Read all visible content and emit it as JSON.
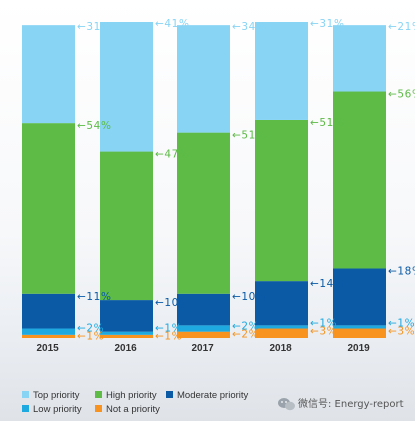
{
  "chart_data": {
    "type": "bar",
    "stacked": true,
    "percent": true,
    "categories": [
      "2015",
      "2016",
      "2017",
      "2018",
      "2019"
    ],
    "series": [
      {
        "name": "Not a priority",
        "color": "#f7931e",
        "values": [
          1,
          1,
          2,
          3,
          3
        ]
      },
      {
        "name": "Low priority",
        "color": "#1ea9e1",
        "values": [
          2,
          1,
          2,
          1,
          1
        ]
      },
      {
        "name": "Moderate priority",
        "color": "#0b5aa6",
        "values": [
          11,
          10,
          10,
          14,
          18
        ]
      },
      {
        "name": "High priority",
        "color": "#5dbb46",
        "values": [
          54,
          47,
          51,
          51,
          56
        ]
      },
      {
        "name": "Top priority",
        "color": "#87d4f5",
        "values": [
          31,
          41,
          34,
          31,
          21
        ]
      }
    ],
    "legend_position": "bottom-left",
    "legend_order": [
      "Top priority",
      "High priority",
      "Moderate priority",
      "Low priority",
      "Not a priority"
    ],
    "data_label_suffix": "%"
  },
  "watermark": {
    "text": "微信号: Energy-report",
    "icon": "wechat-icon"
  }
}
